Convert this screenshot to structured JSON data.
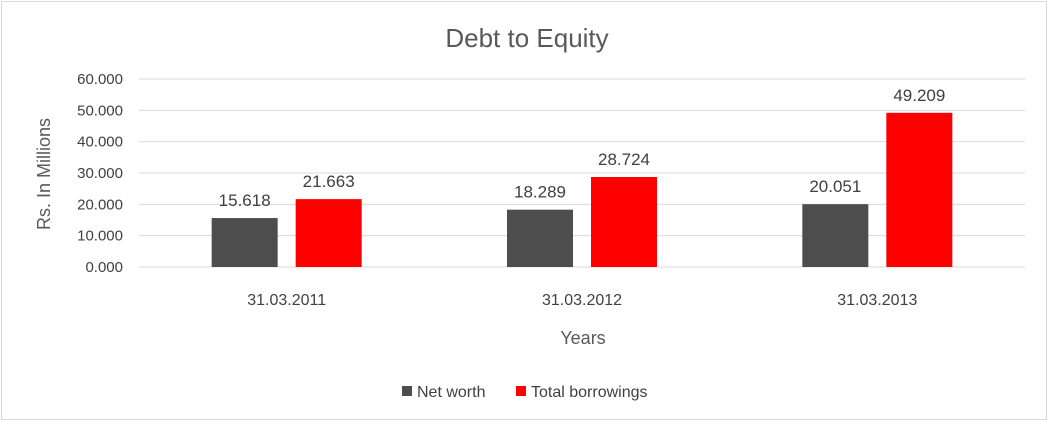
{
  "chart_data": {
    "type": "bar",
    "title": "Debt to Equity",
    "xlabel": "Years",
    "ylabel": "Rs. In Millions",
    "categories": [
      "31.03.2011",
      "31.03.2012",
      "31.03.2013"
    ],
    "series": [
      {
        "name": "Net worth",
        "values": [
          15.618,
          18.289,
          20.051
        ],
        "value_labels": [
          "15.618",
          "18.289",
          "20.051"
        ],
        "color": "#4d4d4d"
      },
      {
        "name": "Total borrowings",
        "values": [
          21.663,
          28.724,
          49.209
        ],
        "value_labels": [
          "21.663",
          "28.724",
          "49.209"
        ],
        "color": "#ff0000"
      }
    ],
    "ylim": [
      0,
      60
    ],
    "yticks": [
      0,
      10,
      20,
      30,
      40,
      50,
      60
    ],
    "ytick_labels": [
      "0.000",
      "10.000",
      "20.000",
      "30.000",
      "40.000",
      "50.000",
      "60.000"
    ],
    "grid": true,
    "legend_position": "bottom",
    "data_labels": true
  }
}
